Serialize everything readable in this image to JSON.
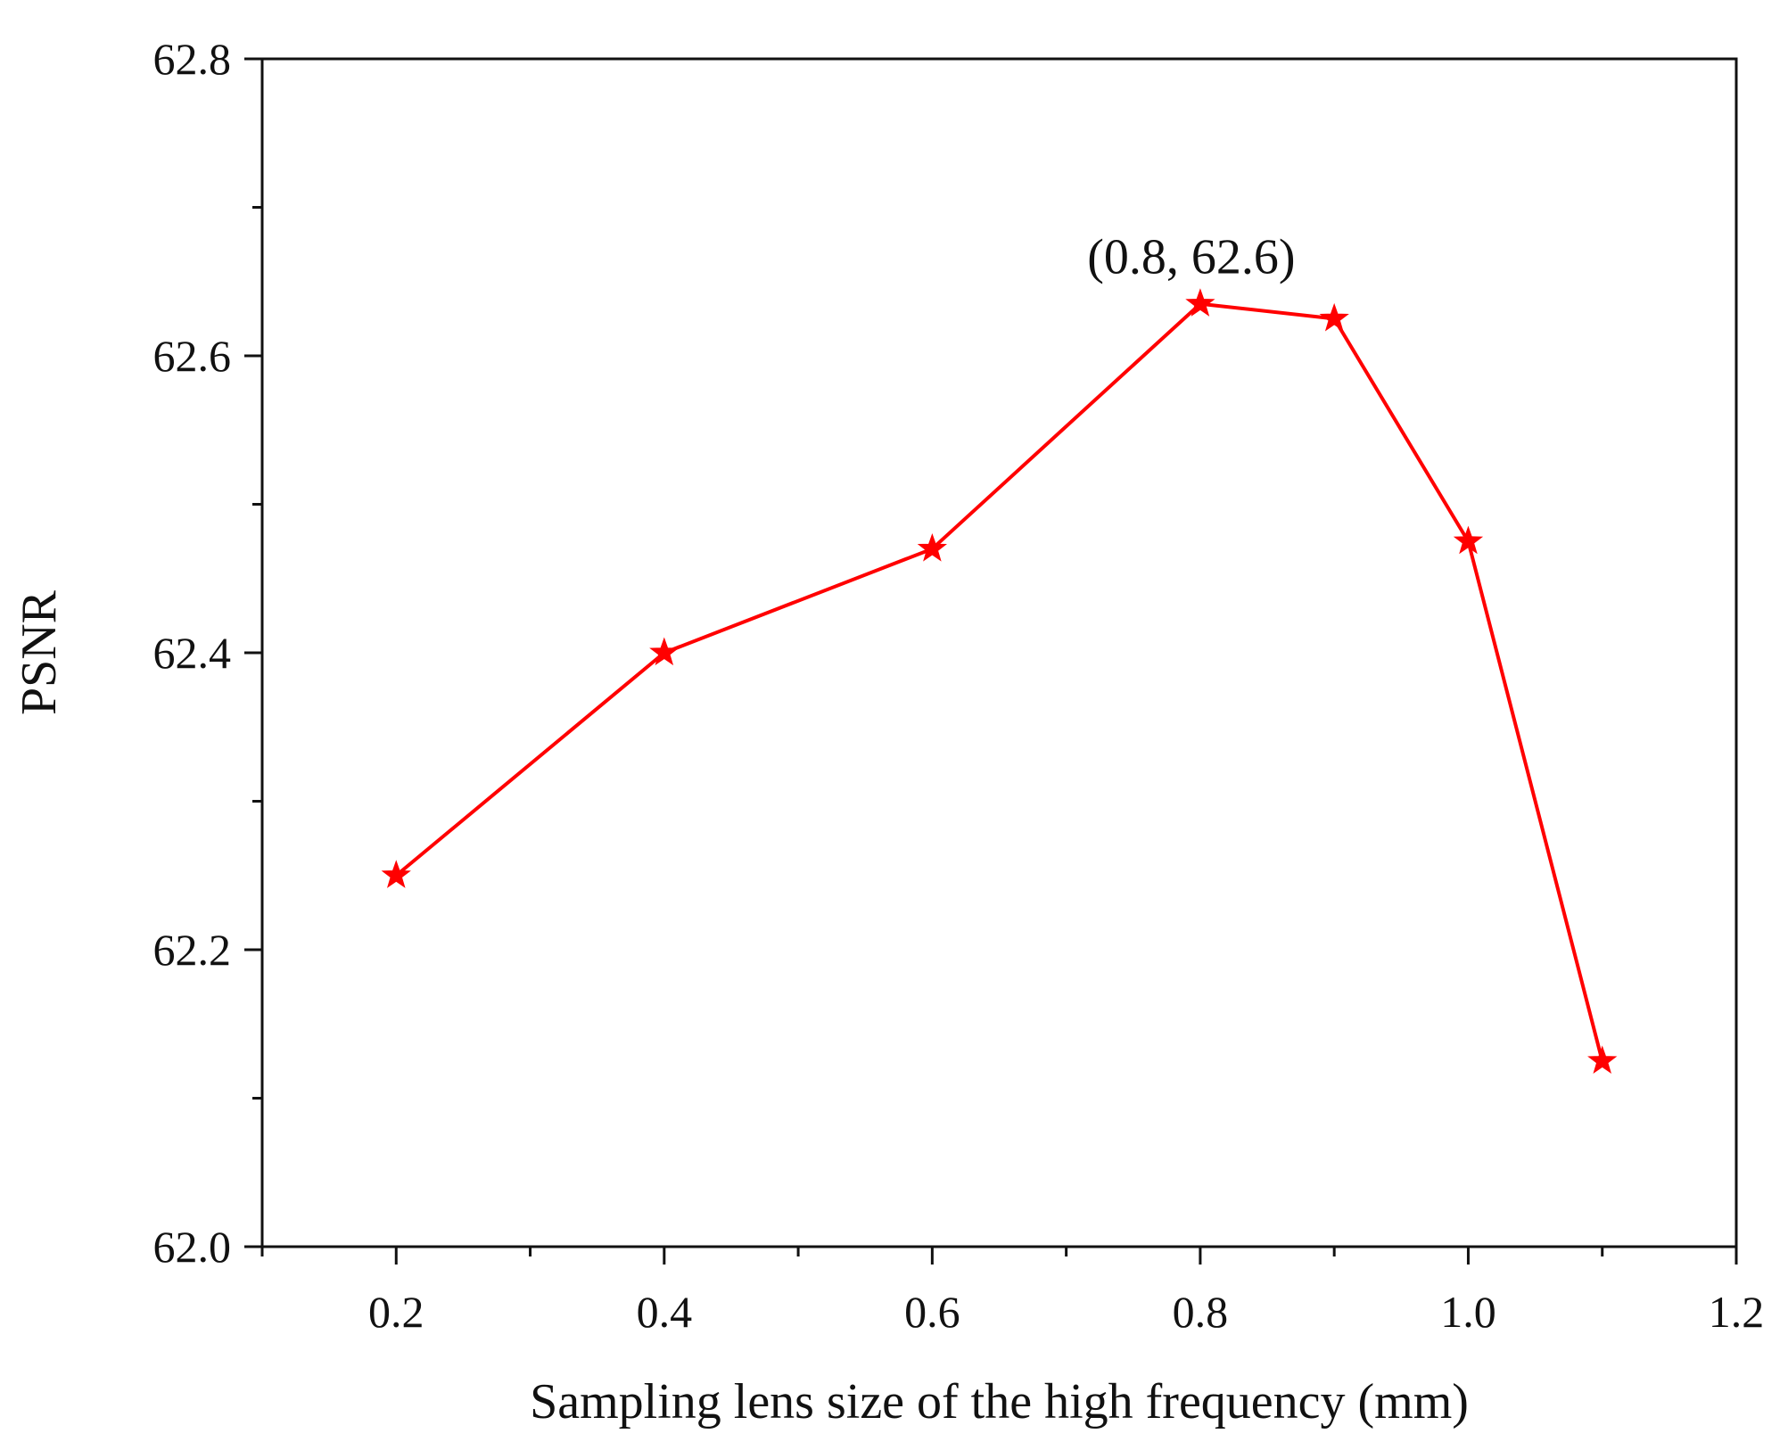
{
  "chart_data": {
    "type": "line",
    "title": "",
    "xlabel": "Sampling lens size of the high frequency (mm)",
    "ylabel": "PSNR",
    "xlim": [
      0.1,
      1.2
    ],
    "ylim": [
      62.0,
      62.8
    ],
    "x_ticks": [
      0.2,
      0.4,
      0.6,
      0.8,
      1.0,
      1.2
    ],
    "x_tick_labels": [
      "0.2",
      "0.4",
      "0.6",
      "0.8",
      "1.0",
      "1.2"
    ],
    "y_ticks": [
      62.0,
      62.2,
      62.4,
      62.6,
      62.8
    ],
    "y_tick_labels": [
      "62.0",
      "62.2",
      "62.4",
      "62.6",
      "62.8"
    ],
    "grid": false,
    "series": [
      {
        "name": "PSNR",
        "color": "#ff0000",
        "marker": "star",
        "x": [
          0.2,
          0.4,
          0.6,
          0.8,
          0.9,
          1.0,
          1.1
        ],
        "y": [
          62.25,
          62.4,
          62.47,
          62.635,
          62.625,
          62.475,
          62.125
        ]
      }
    ],
    "annotations": [
      {
        "text": "(0.8, 62.6)",
        "x": 0.8,
        "y": 62.635
      }
    ]
  }
}
